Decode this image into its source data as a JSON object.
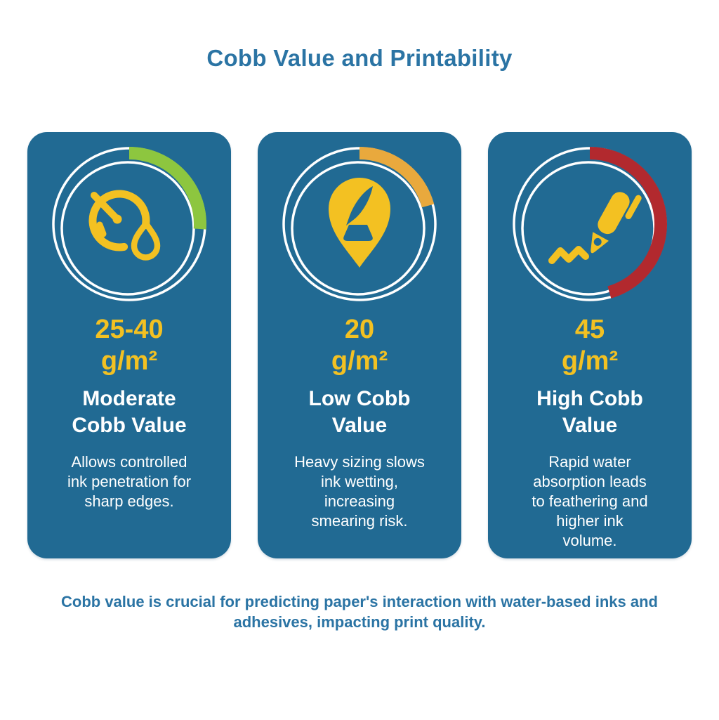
{
  "title": "Cobb Value and Printability",
  "footer_caption": "Cobb value is crucial for predicting paper's interaction with water-based inks and\nadhesives, impacting print quality.",
  "colors": {
    "card_bg": "#216A93",
    "heading_blue": "#2B74A4",
    "accent_yellow": "#F3C122",
    "ring_white": "#FFFFFF",
    "arc_green": "#8DC63F",
    "arc_orange": "#E9A93D",
    "arc_red": "#B2292E"
  },
  "cards": [
    {
      "icon": "gauge-droplet-icon",
      "gauge": {
        "color": "#8DC63F",
        "sweep_deg": 94
      },
      "value": "25-40\ng/m²",
      "title": "Moderate\nCobb Value",
      "description": "Allows controlled\nink penetration for\nsharp edges."
    },
    {
      "icon": "ink-drop-pin-icon",
      "gauge": {
        "color": "#E9A93D",
        "sweep_deg": 75
      },
      "value": "20\ng/m²",
      "title": "Low Cobb\nValue",
      "description": "Heavy sizing slows\nink wetting,\nincreasing\nsmearing risk."
    },
    {
      "icon": "pen-writing-icon",
      "gauge": {
        "color": "#B2292E",
        "sweep_deg": 164
      },
      "value": "45\ng/m²",
      "title": "High Cobb\nValue",
      "description": "Rapid water\nabsorption leads\nto feathering and\nhigher ink\nvolume."
    }
  ]
}
